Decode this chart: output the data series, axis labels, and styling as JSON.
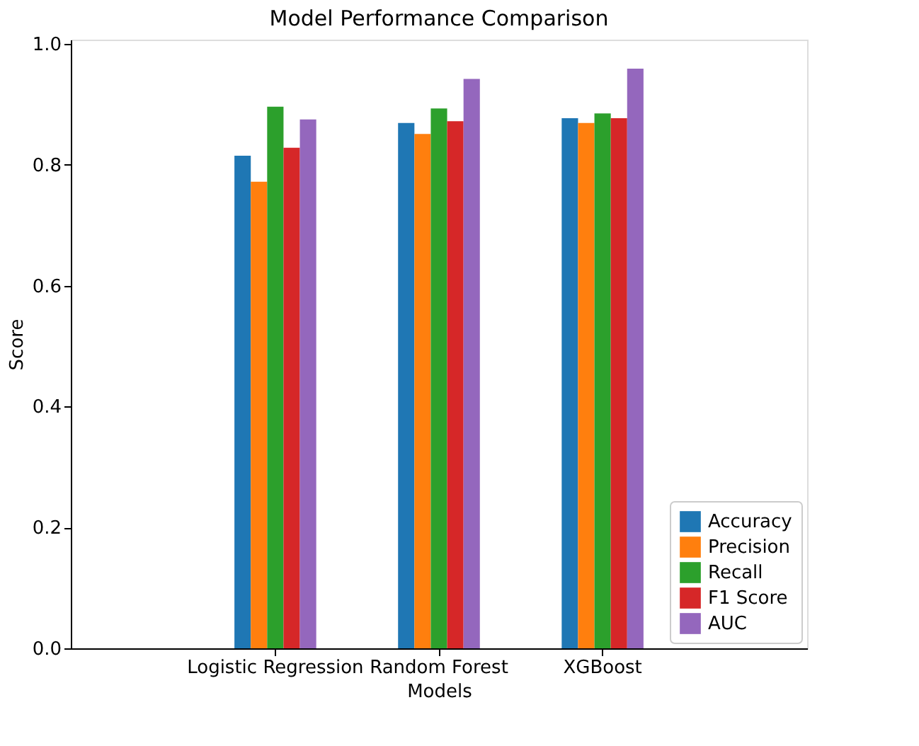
{
  "chart_data": {
    "type": "bar",
    "title": "Model Performance Comparison",
    "xlabel": "Models",
    "ylabel": "Score",
    "categories": [
      "Logistic Regression",
      "Random Forest",
      "XGBoost"
    ],
    "series": [
      {
        "name": "Accuracy",
        "color": "#1f77b4",
        "values": [
          0.815,
          0.869,
          0.877
        ]
      },
      {
        "name": "Precision",
        "color": "#ff7f0e",
        "values": [
          0.772,
          0.851,
          0.869
        ]
      },
      {
        "name": "Recall",
        "color": "#2ca02c",
        "values": [
          0.896,
          0.893,
          0.885
        ]
      },
      {
        "name": "F1 Score",
        "color": "#d62728",
        "values": [
          0.828,
          0.872,
          0.877
        ]
      },
      {
        "name": "AUC",
        "color": "#9467bd",
        "values": [
          0.875,
          0.942,
          0.959
        ]
      }
    ],
    "ylim": [
      0,
      1.007
    ],
    "yticks": [
      {
        "value": 0,
        "label": "0.0"
      },
      {
        "value": 0.2,
        "label": "0.2"
      },
      {
        "value": 0.4,
        "label": "0.4"
      },
      {
        "value": 0.6,
        "label": "0.6"
      },
      {
        "value": 0.8,
        "label": "0.8"
      },
      {
        "value": 1.0,
        "label": "1.0"
      }
    ],
    "grid": false,
    "legend": "bottom right"
  }
}
